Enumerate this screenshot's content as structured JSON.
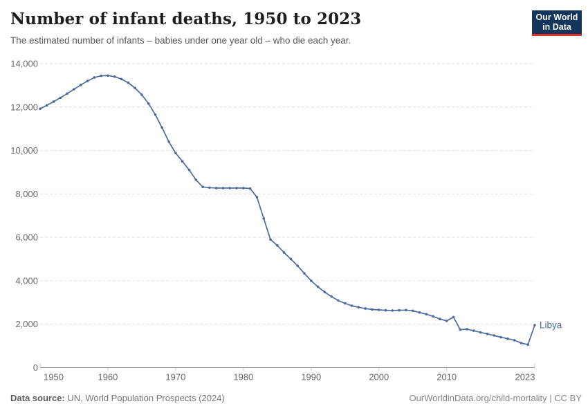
{
  "header": {
    "title": "Number of infant deaths, 1950 to 2023",
    "subtitle": "The estimated number of infants – babies under one year old – who die each year."
  },
  "logo": {
    "line1": "Our World",
    "line2": "in Data",
    "bg_color": "#14355c",
    "accent_color": "#dc2e27"
  },
  "footer": {
    "source_label": "Data source:",
    "source_text": " UN, World Population Prospects (2024)",
    "credit": "OurWorldinData.org/child-mortality | CC BY"
  },
  "chart_data": {
    "type": "line",
    "title": "Number of infant deaths, 1950 to 2023",
    "subtitle": "The estimated number of infants – babies under one year old – who die each year.",
    "xlabel": "",
    "ylabel": "",
    "xlim": [
      1950,
      2023
    ],
    "ylim": [
      0,
      14000
    ],
    "x_ticks": [
      1950,
      1960,
      1970,
      1980,
      1990,
      2000,
      2010,
      2023
    ],
    "y_ticks": [
      0,
      2000,
      4000,
      6000,
      8000,
      10000,
      12000,
      14000
    ],
    "grid": "horizontal-dashed",
    "legend_position": "end-of-line-label",
    "line_color": "#4C6A9C",
    "grid_color": "#e0e0e0",
    "axis_color": "#8f8f8f",
    "tick_label_color": "#696969",
    "entity_label": "Libya",
    "series": [
      {
        "name": "Libya",
        "color": "#4C6A9C",
        "points": [
          [
            1950,
            11920
          ],
          [
            1951,
            12080
          ],
          [
            1952,
            12250
          ],
          [
            1953,
            12430
          ],
          [
            1954,
            12620
          ],
          [
            1955,
            12820
          ],
          [
            1956,
            13020
          ],
          [
            1957,
            13200
          ],
          [
            1958,
            13360
          ],
          [
            1959,
            13440
          ],
          [
            1960,
            13450
          ],
          [
            1961,
            13400
          ],
          [
            1962,
            13290
          ],
          [
            1963,
            13120
          ],
          [
            1964,
            12880
          ],
          [
            1965,
            12570
          ],
          [
            1966,
            12160
          ],
          [
            1967,
            11650
          ],
          [
            1968,
            11050
          ],
          [
            1969,
            10400
          ],
          [
            1970,
            9880
          ],
          [
            1971,
            9500
          ],
          [
            1972,
            9100
          ],
          [
            1973,
            8650
          ],
          [
            1974,
            8320
          ],
          [
            1975,
            8290
          ],
          [
            1976,
            8270
          ],
          [
            1977,
            8270
          ],
          [
            1978,
            8270
          ],
          [
            1979,
            8270
          ],
          [
            1980,
            8270
          ],
          [
            1981,
            8250
          ],
          [
            1982,
            7850
          ],
          [
            1983,
            6870
          ],
          [
            1984,
            5900
          ],
          [
            1985,
            5630
          ],
          [
            1986,
            5300
          ],
          [
            1987,
            5000
          ],
          [
            1988,
            4690
          ],
          [
            1989,
            4340
          ],
          [
            1990,
            4000
          ],
          [
            1991,
            3720
          ],
          [
            1992,
            3480
          ],
          [
            1993,
            3270
          ],
          [
            1994,
            3090
          ],
          [
            1995,
            2960
          ],
          [
            1996,
            2850
          ],
          [
            1997,
            2780
          ],
          [
            1998,
            2720
          ],
          [
            1999,
            2680
          ],
          [
            2000,
            2660
          ],
          [
            2001,
            2640
          ],
          [
            2002,
            2630
          ],
          [
            2003,
            2640
          ],
          [
            2004,
            2650
          ],
          [
            2005,
            2620
          ],
          [
            2006,
            2540
          ],
          [
            2007,
            2460
          ],
          [
            2008,
            2360
          ],
          [
            2009,
            2240
          ],
          [
            2010,
            2150
          ],
          [
            2011,
            2330
          ],
          [
            2012,
            1750
          ],
          [
            2013,
            1770
          ],
          [
            2014,
            1700
          ],
          [
            2015,
            1620
          ],
          [
            2016,
            1550
          ],
          [
            2017,
            1480
          ],
          [
            2018,
            1400
          ],
          [
            2019,
            1330
          ],
          [
            2020,
            1260
          ],
          [
            2021,
            1130
          ],
          [
            2022,
            1060
          ],
          [
            2023,
            1960
          ]
        ]
      }
    ]
  }
}
